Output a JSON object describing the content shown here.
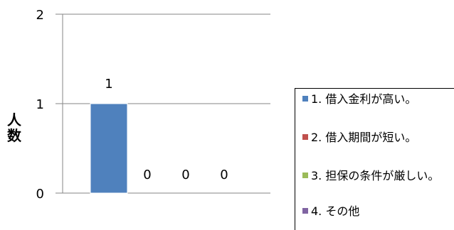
{
  "chart_data": {
    "type": "bar",
    "title": "",
    "xlabel": "",
    "ylabel": "人数",
    "ylim": [
      0,
      2
    ],
    "yticks": [
      "0",
      "1",
      "2"
    ],
    "grid": true,
    "legend_position": "right",
    "categories": [
      "1. 借入金利が高い。",
      "2. 借入期間が短い。",
      "3. 担保の条件が厳しい。",
      "4. その他"
    ],
    "values": [
      1,
      0,
      0,
      0
    ],
    "data_labels": [
      "1",
      "0",
      "0",
      "0"
    ],
    "colors": [
      "#4F81BD",
      "#C0504D",
      "#9BBB59",
      "#8064A2"
    ]
  }
}
